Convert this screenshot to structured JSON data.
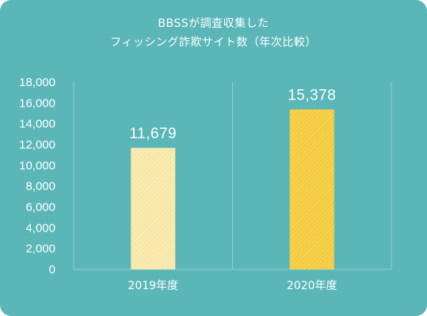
{
  "chart_data": {
    "type": "bar",
    "title_lines": [
      "BBSSが調査収集した",
      "フィッシング詐欺サイト数（年次比較）"
    ],
    "categories": [
      "2019年度",
      "2020年度"
    ],
    "values": [
      11679,
      15378
    ],
    "value_labels": [
      "11,679",
      "15,378"
    ],
    "ylim": [
      0,
      18000
    ],
    "yticks": [
      0,
      2000,
      4000,
      6000,
      8000,
      10000,
      12000,
      14000,
      16000,
      18000
    ],
    "ytick_labels": [
      "0",
      "2,000",
      "4,000",
      "6,000",
      "8,000",
      "10,000",
      "12,000",
      "14,000",
      "16,000",
      "18,000"
    ],
    "xlabel": "",
    "ylabel": "",
    "grid": false,
    "colors": {
      "background": "#5bb6b8",
      "bars": [
        "#f7e7a6",
        "#f4cb3c"
      ],
      "axis": "#8fcfd0"
    }
  }
}
